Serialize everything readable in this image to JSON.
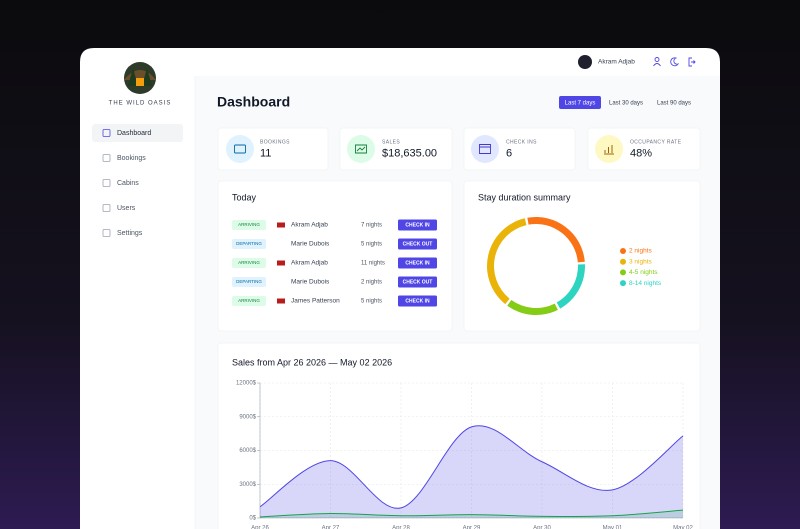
{
  "sidebar": {
    "brand": "THE WILD OASIS",
    "nav": [
      "Dashboard",
      "Bookings",
      "Cabins",
      "Users",
      "Settings"
    ]
  },
  "header": {
    "user": "Akram Adjab"
  },
  "page": {
    "title": "Dashboard",
    "filters": [
      "Last 7 days",
      "Last 30 days",
      "Last 90 days"
    ]
  },
  "stats": [
    {
      "label": "BOOKINGS",
      "value": 11
    },
    {
      "label": "SALES",
      "value": "$18,635.00"
    },
    {
      "label": "CHECK INS",
      "value": 6
    },
    {
      "label": "OCCUPANCY RATE",
      "value": "48%"
    }
  ],
  "today": {
    "title": "Today",
    "rows": [
      {
        "status": "ARRIVING",
        "guest": "Akram Adjab",
        "nights": "7 nights",
        "action": "CHECK IN"
      },
      {
        "status": "DEPARTING",
        "guest": "Marie Dubois",
        "nights": "5 nights",
        "action": "CHECK OUT"
      },
      {
        "status": "ARRIVING",
        "guest": "Akram Adjab",
        "nights": "11 nights",
        "action": "CHECK IN"
      },
      {
        "status": "DEPARTING",
        "guest": "Marie Dubois",
        "nights": "2 nights",
        "action": "CHECK OUT"
      },
      {
        "status": "ARRIVING",
        "guest": "James Patterson",
        "nights": "5 nights",
        "action": "CHECK IN"
      }
    ]
  },
  "chart_data": [
    {
      "type": "donut",
      "title": "Stay duration summary",
      "categories": [
        "2 nights",
        "3 nights",
        "4-5 nights",
        "8-14 nights"
      ],
      "values": [
        3,
        4,
        2,
        2
      ],
      "colors": [
        "#f97316",
        "#eab308",
        "#84cc16",
        "#2dd4bf"
      ]
    },
    {
      "type": "area",
      "title": "Sales from Apr 26 2026 — May 02 2026",
      "categories": [
        "Apr 26",
        "Apr 27",
        "Apr 28",
        "Apr 29",
        "Apr 30",
        "May 01",
        "May 02"
      ],
      "series": [
        {
          "color": "#4f46e5",
          "values": [
            1000,
            5100,
            900,
            8100,
            5000,
            2500,
            7300
          ]
        },
        {
          "color": "#16a34a",
          "values": [
            100,
            400,
            200,
            300,
            150,
            200,
            700
          ]
        }
      ],
      "ylim": [
        0,
        12000
      ],
      "yticks": [
        {
          "value": 0,
          "label": "0$"
        },
        {
          "value": 3000,
          "label": "3000$"
        },
        {
          "value": 6000,
          "label": "6000$"
        },
        {
          "value": 9000,
          "label": "9000$"
        },
        {
          "value": 12000,
          "label": "12000$"
        }
      ],
      "grid": true
    }
  ]
}
